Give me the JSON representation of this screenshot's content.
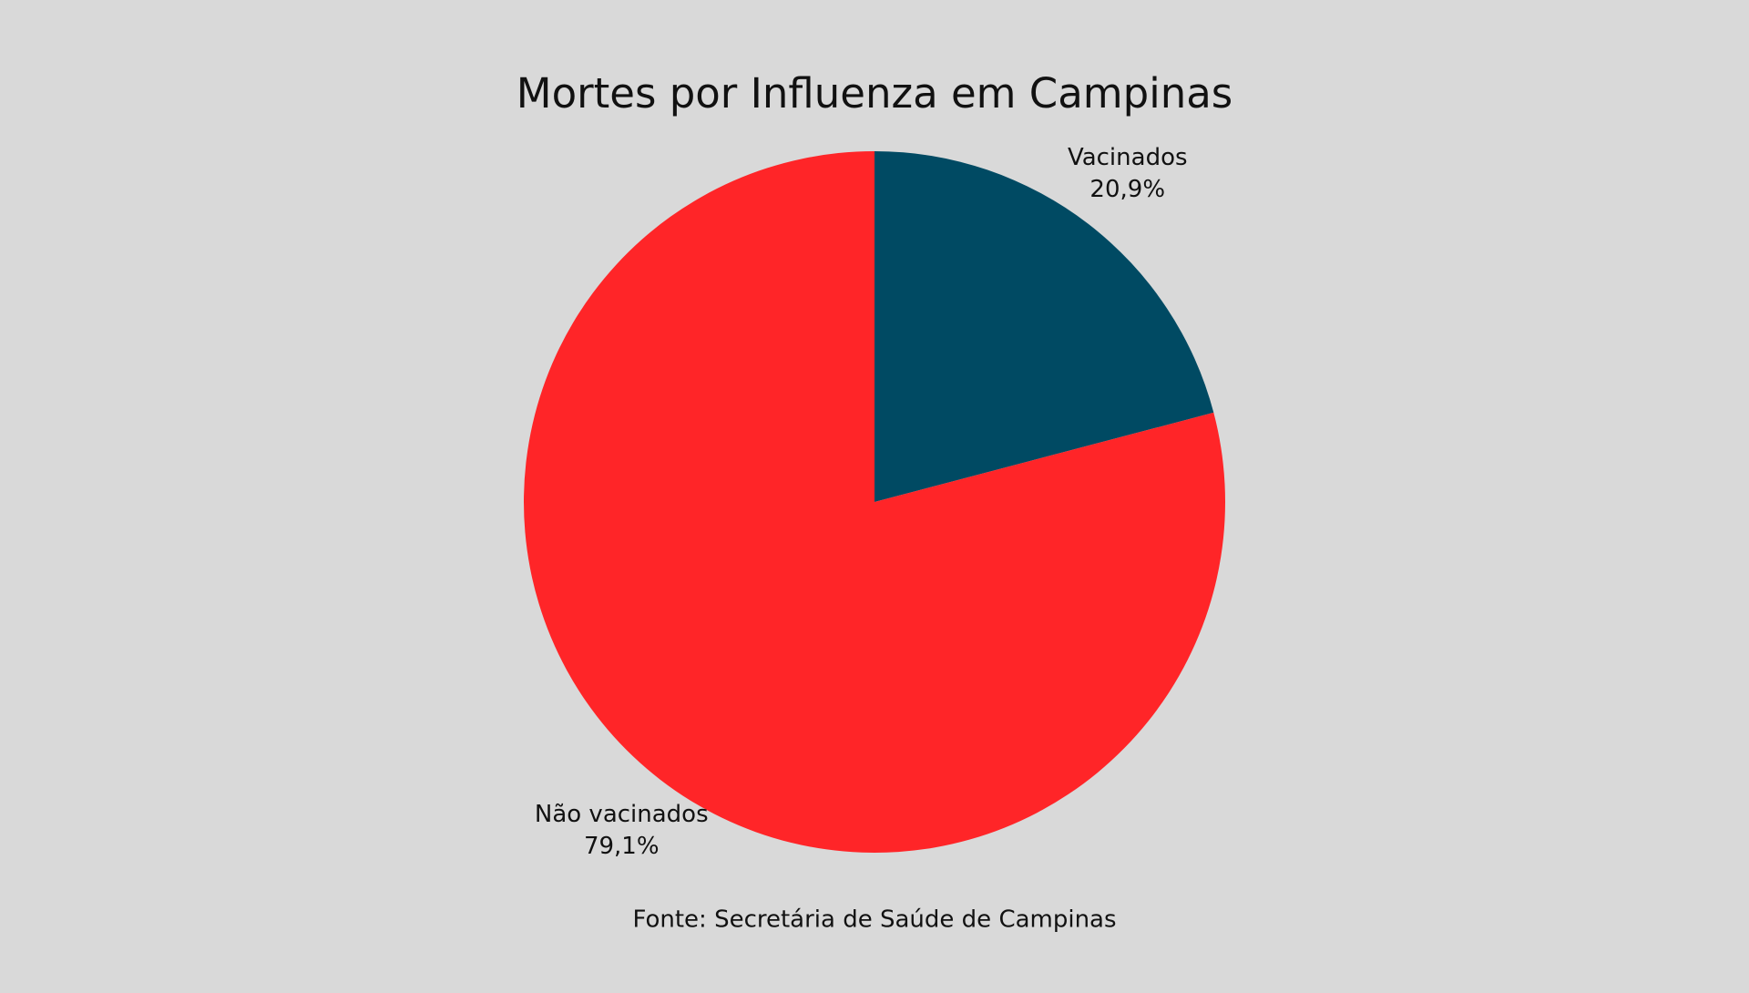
{
  "chart_data": {
    "type": "pie",
    "title": "Mortes por Influenza em Campinas",
    "categories": [
      "Vacinados",
      "Não vacinados"
    ],
    "values": [
      20.9,
      79.1
    ],
    "value_labels": [
      "20,9%",
      "79,1%"
    ],
    "colors": [
      "#004a63",
      "#ff2528"
    ],
    "source": "Fonte: Secretária de Saúde de Campinas"
  }
}
